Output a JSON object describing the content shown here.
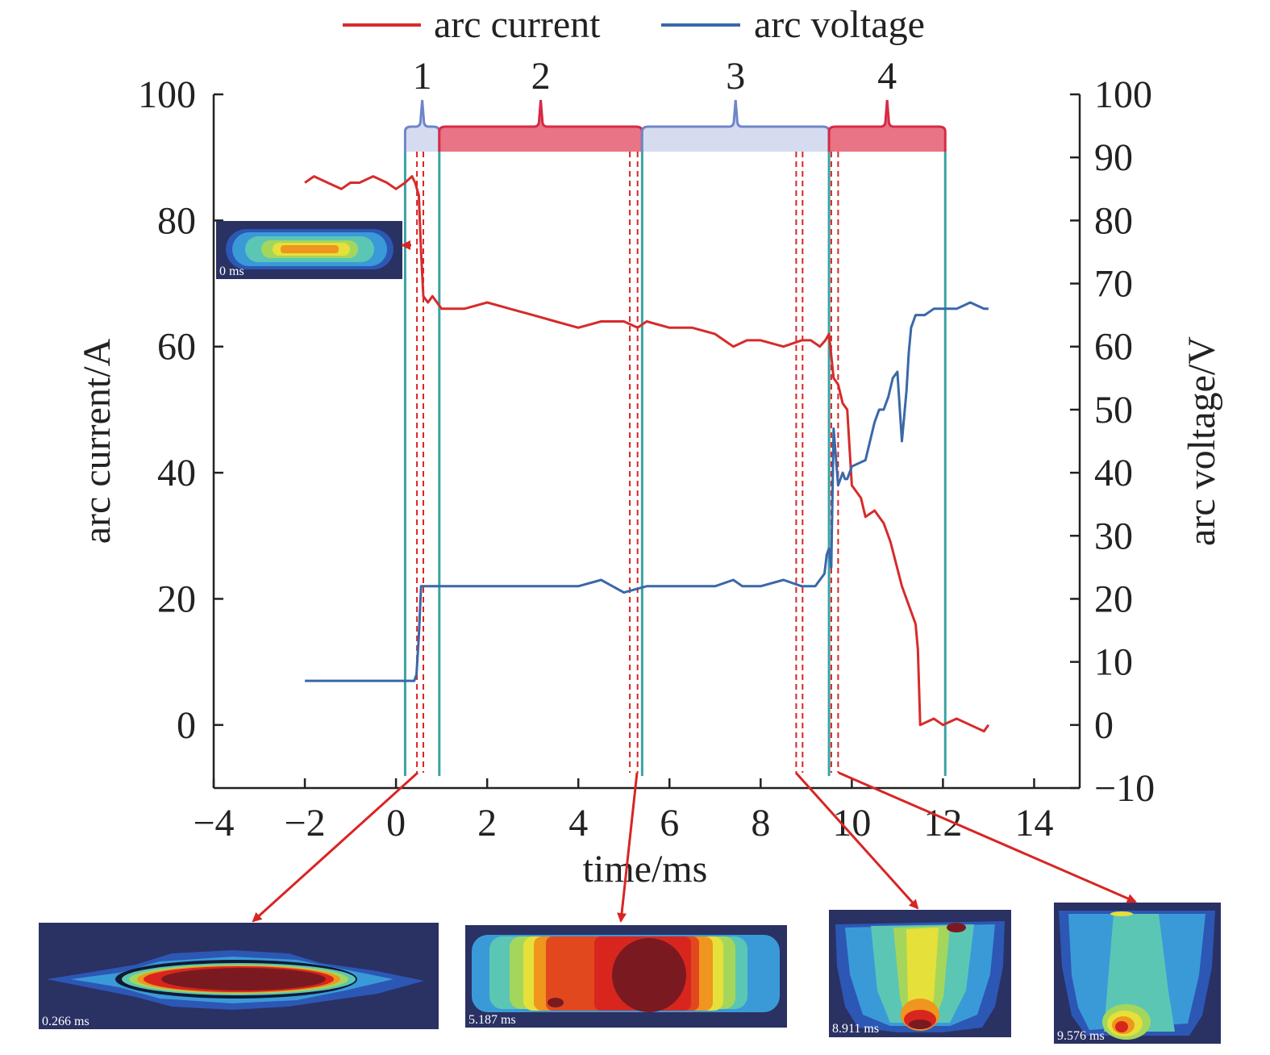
{
  "chart_data": {
    "type": "line",
    "legend": {
      "placement": "top-center",
      "entries": [
        {
          "key": "current",
          "name": "arc current",
          "color": "#d62b2b"
        },
        {
          "key": "voltage",
          "name": "arc voltage",
          "color": "#3a68a8"
        }
      ]
    },
    "xlabel": "time/ms",
    "ylabel_left": "arc current/A",
    "ylabel_right": "arc voltage/V",
    "xlim": [
      -4,
      15
    ],
    "ylim_left": [
      -10,
      100
    ],
    "ylim_right": [
      -10,
      100
    ],
    "xticks": [
      "−4",
      "−2",
      "0",
      "2",
      "4",
      "6",
      "8",
      "10",
      "12",
      "14"
    ],
    "yticks_left": [
      "0",
      "20",
      "40",
      "60",
      "80",
      "100"
    ],
    "yticks_right": [
      "−10",
      "0",
      "10",
      "20",
      "30",
      "40",
      "50",
      "60",
      "70",
      "80",
      "90",
      "100"
    ],
    "grid": false,
    "phases": [
      {
        "label": "1",
        "start": 0.2,
        "end": 0.95,
        "color": "#d6dcf0",
        "edge": "#6f86c8"
      },
      {
        "label": "2",
        "start": 0.95,
        "end": 5.4,
        "color": "#e87486",
        "edge": "#d62b45"
      },
      {
        "label": "3",
        "start": 5.4,
        "end": 9.5,
        "color": "#d6dcf0",
        "edge": "#6f86c8"
      },
      {
        "label": "4",
        "start": 9.5,
        "end": 12.05,
        "color": "#e87486",
        "edge": "#d62b45"
      }
    ],
    "phase_boundaries": [
      0.2,
      0.95,
      5.4,
      9.5,
      12.05
    ],
    "snapshot_markers": [
      0.46,
      0.6,
      5.13,
      5.3,
      8.78,
      8.92,
      9.55,
      9.7
    ],
    "series": [
      {
        "name": "arc current",
        "axis": "left",
        "x": [
          -2.0,
          -1.8,
          -1.5,
          -1.2,
          -1.0,
          -0.8,
          -0.5,
          -0.2,
          0.0,
          0.2,
          0.35,
          0.42,
          0.5,
          0.55,
          0.6,
          0.7,
          0.8,
          1.0,
          1.5,
          2.0,
          2.5,
          3.0,
          3.5,
          4.0,
          4.5,
          5.0,
          5.3,
          5.5,
          6.0,
          6.5,
          7.0,
          7.4,
          7.7,
          8.0,
          8.5,
          8.9,
          9.1,
          9.3,
          9.42,
          9.5,
          9.6,
          9.7,
          9.8,
          9.9,
          10.0,
          10.2,
          10.3,
          10.5,
          10.7,
          10.8,
          10.85,
          11.1,
          11.2,
          11.4,
          11.45,
          11.5,
          11.8,
          12.0,
          12.3,
          12.6,
          12.9,
          13.0
        ],
        "values": [
          86,
          87,
          86,
          85,
          86,
          86,
          87,
          86,
          85,
          86,
          87,
          86,
          84,
          75,
          68,
          67,
          68,
          66,
          66,
          67,
          66,
          65,
          64,
          63,
          64,
          64,
          63,
          64,
          63,
          63,
          62,
          60,
          61,
          61,
          60,
          61,
          61,
          60,
          61,
          62,
          55,
          54,
          51,
          50,
          38,
          36,
          33,
          34,
          32,
          30,
          29,
          22,
          20,
          16,
          12,
          0,
          1,
          0,
          1,
          0,
          -1,
          0
        ]
      },
      {
        "name": "arc voltage",
        "axis": "right",
        "x": [
          -2.0,
          -1.5,
          -1.0,
          -0.5,
          0.0,
          0.2,
          0.4,
          0.45,
          0.5,
          0.55,
          0.6,
          1.0,
          2.0,
          3.0,
          4.0,
          4.5,
          5.0,
          5.5,
          6.0,
          7.0,
          7.4,
          7.6,
          8.0,
          8.5,
          8.9,
          9.2,
          9.4,
          9.45,
          9.5,
          9.55,
          9.6,
          9.7,
          9.8,
          9.85,
          9.9,
          10.0,
          10.3,
          10.5,
          10.6,
          10.7,
          10.8,
          10.9,
          11.0,
          11.1,
          11.2,
          11.25,
          11.3,
          11.4,
          11.5,
          11.6,
          11.8,
          12.0,
          12.3,
          12.6,
          12.9,
          13.0
        ],
        "values": [
          7,
          7,
          7,
          7,
          7,
          7,
          7,
          8,
          14,
          22,
          22,
          22,
          22,
          22,
          22,
          23,
          21,
          22,
          22,
          22,
          23,
          22,
          22,
          23,
          22,
          22,
          24,
          27,
          28,
          25,
          47,
          38,
          40,
          39,
          39,
          41,
          42,
          48,
          50,
          50,
          52,
          55,
          56,
          45,
          53,
          59,
          63,
          65,
          65,
          65,
          66,
          66,
          66,
          67,
          66,
          66
        ]
      }
    ],
    "snapshots": [
      {
        "time_label": "0 ms",
        "time": 0.0,
        "kind": "horizontal-small"
      },
      {
        "time_label": "0.266 ms",
        "time": 0.53,
        "kind": "horizontal-elongated"
      },
      {
        "time_label": "5.187 ms",
        "time": 5.2,
        "kind": "horizontal-wide"
      },
      {
        "time_label": "8.911 ms",
        "time": 8.85,
        "kind": "vertical-column"
      },
      {
        "time_label": "9.576 ms",
        "time": 9.62,
        "kind": "vertical-column-cool"
      }
    ]
  }
}
